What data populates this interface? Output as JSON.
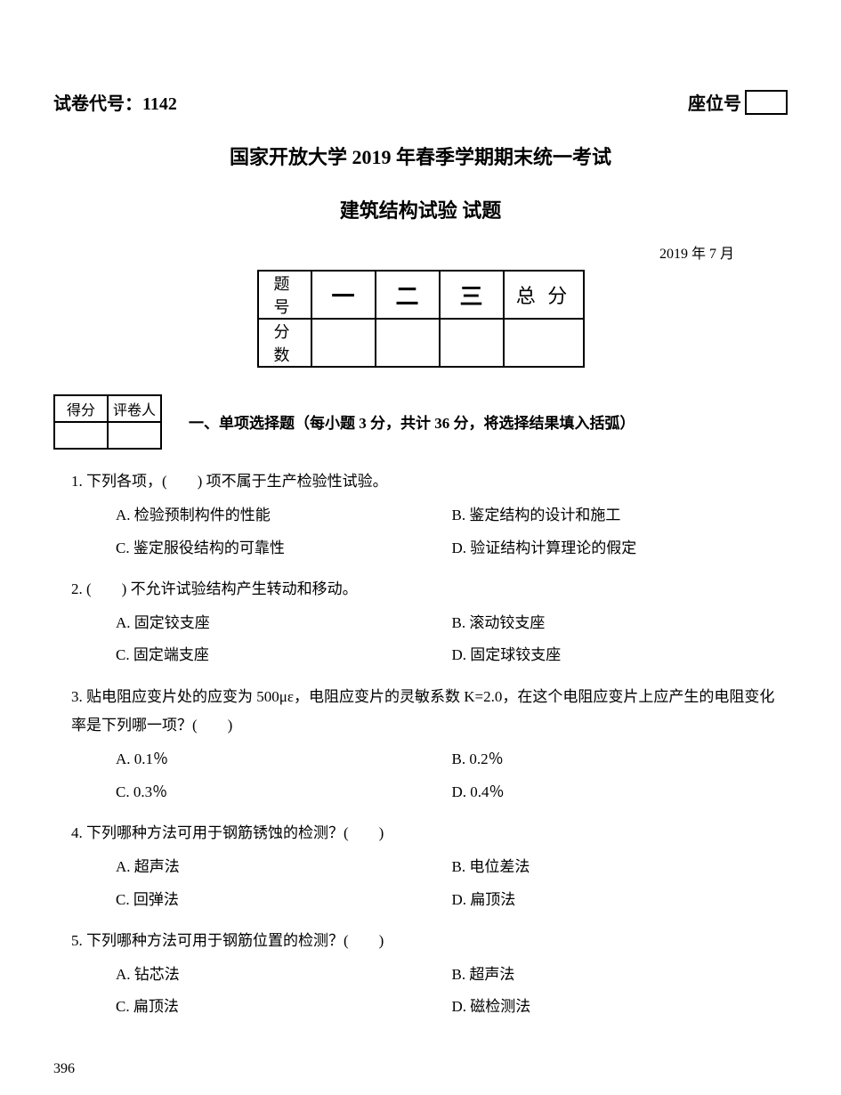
{
  "header": {
    "exam_code_label": "试卷代号：",
    "exam_code_value": "1142",
    "seat_label": "座位号"
  },
  "titles": {
    "line1": "国家开放大学 2019 年春季学期期末统一考试",
    "line2": "建筑结构试验 试题",
    "date": "2019 年 7 月"
  },
  "score_table": {
    "row1_label": "题 号",
    "cols": [
      "一",
      "二",
      "三"
    ],
    "total_label": "总 分",
    "row2_label": "分 数"
  },
  "mini_score": {
    "c1": "得分",
    "c2": "评卷人"
  },
  "section1_title": "一、单项选择题（每小题 3 分，共计 36 分，将选择结果填入括弧）",
  "questions": [
    {
      "stem": "1. 下列各项，(　　) 项不属于生产检验性试验。",
      "opts": [
        "A. 检验预制构件的性能",
        "B. 鉴定结构的设计和施工",
        "C. 鉴定服役结构的可靠性",
        "D. 验证结构计算理论的假定"
      ]
    },
    {
      "stem": "2. (　　) 不允许试验结构产生转动和移动。",
      "opts": [
        "A. 固定铰支座",
        "B. 滚动铰支座",
        "C. 固定端支座",
        "D. 固定球铰支座"
      ]
    },
    {
      "stem": "3. 贴电阻应变片处的应变为 500με，电阻应变片的灵敏系数 K=2.0，在这个电阻应变片上应产生的电阻变化率是下列哪一项？(　　)",
      "opts": [
        "A. 0.1％",
        "B. 0.2％",
        "C. 0.3％",
        "D. 0.4％"
      ]
    },
    {
      "stem": "4. 下列哪种方法可用于钢筋锈蚀的检测？(　　)",
      "opts": [
        "A. 超声法",
        "B. 电位差法",
        "C. 回弹法",
        "D. 扁顶法"
      ]
    },
    {
      "stem": "5. 下列哪种方法可用于钢筋位置的检测？(　　)",
      "opts": [
        "A. 钻芯法",
        "B. 超声法",
        "C. 扁顶法",
        "D. 磁检测法"
      ]
    }
  ],
  "page_number": "396"
}
